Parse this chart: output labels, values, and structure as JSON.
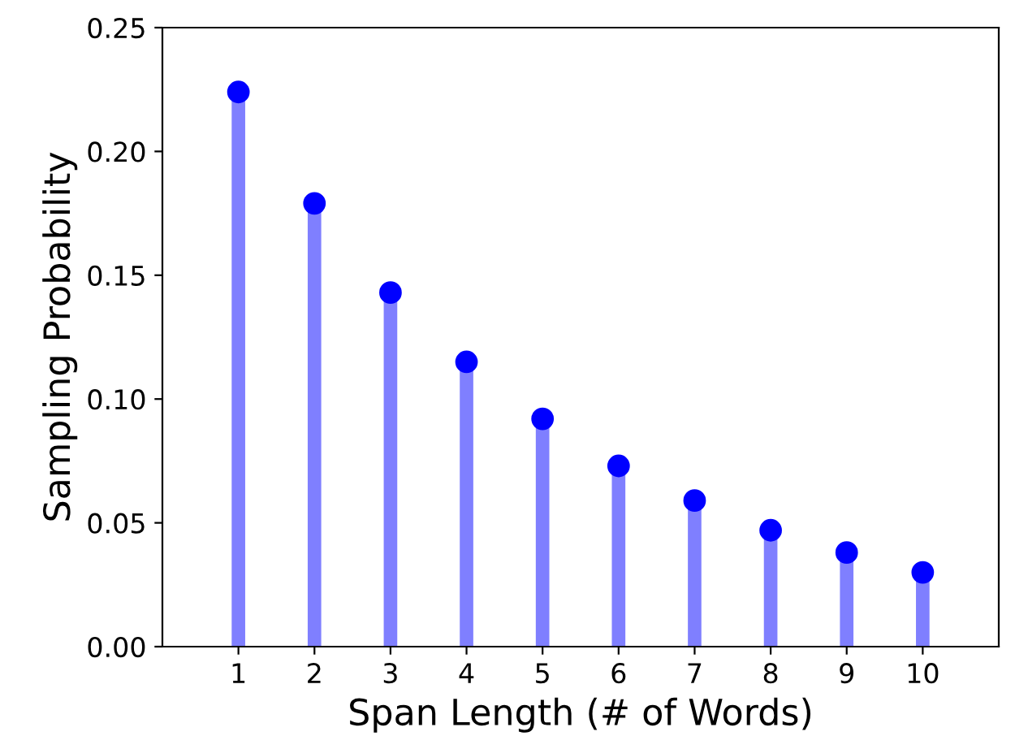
{
  "chart_data": {
    "type": "lollipop",
    "xlabel": "Span Length (# of Words)",
    "ylabel": "Sampling Probability",
    "categories": [
      "1",
      "2",
      "3",
      "4",
      "5",
      "6",
      "7",
      "8",
      "9",
      "10"
    ],
    "series": [
      {
        "color": "#0000ff",
        "values": [
          0.224,
          0.179,
          0.143,
          0.115,
          0.092,
          0.073,
          0.059,
          0.047,
          0.038,
          0.03
        ]
      }
    ],
    "ylim": [
      0,
      0.25
    ],
    "yticks": [
      {
        "value": 0,
        "label": "0.00"
      },
      {
        "value": 0.05,
        "label": "0.05"
      },
      {
        "value": 0.1,
        "label": "0.10"
      },
      {
        "value": 0.15,
        "label": "0.15"
      },
      {
        "value": 0.2,
        "label": "0.20"
      },
      {
        "value": 0.25,
        "label": "0.25"
      }
    ],
    "marker": "circle"
  }
}
